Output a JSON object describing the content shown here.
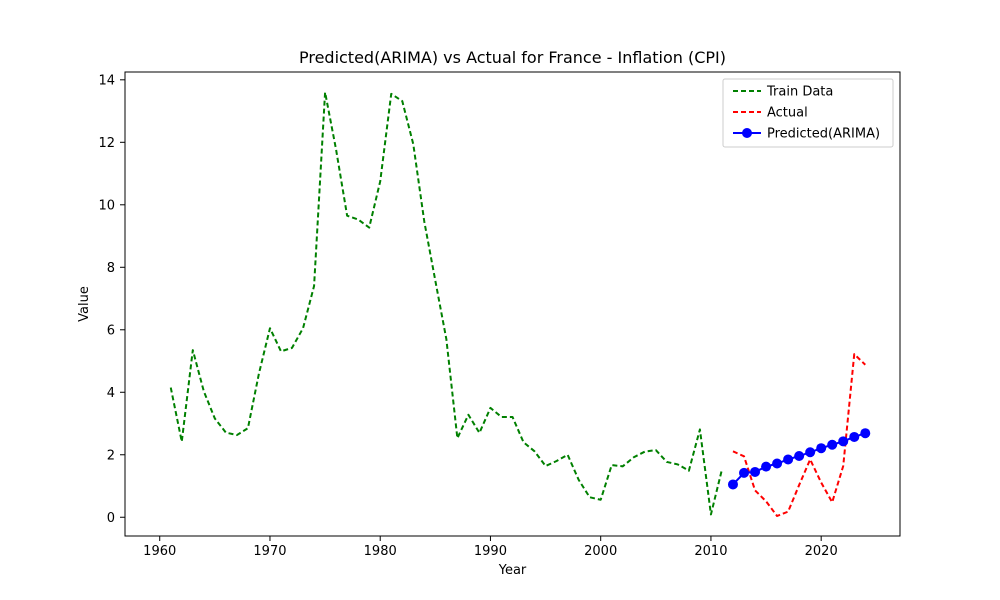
{
  "chart_data": {
    "type": "line",
    "title": "Predicted(ARIMA) vs Actual for France - Inflation (CPI)",
    "xlabel": "Year",
    "ylabel": "Value",
    "xlim": [
      1956.85,
      2027.15
    ],
    "ylim": [
      -0.6,
      14.25
    ],
    "xticks": [
      1960,
      1970,
      1980,
      1990,
      2000,
      2010,
      2020
    ],
    "yticks": [
      0,
      2,
      4,
      6,
      8,
      10,
      12,
      14
    ],
    "grid": false,
    "legend_position": "top-right",
    "series": [
      {
        "name": "Train Data",
        "color": "#008000",
        "style": "dashed",
        "marker": "none",
        "x": [
          1961,
          1962,
          1963,
          1964,
          1965,
          1966,
          1967,
          1968,
          1969,
          1970,
          1971,
          1972,
          1973,
          1974,
          1975,
          1976,
          1977,
          1978,
          1979,
          1980,
          1981,
          1982,
          1983,
          1984,
          1985,
          1986,
          1987,
          1988,
          1989,
          1990,
          1991,
          1992,
          1993,
          1994,
          1995,
          1996,
          1997,
          1998,
          1999,
          2000,
          2001,
          2002,
          2003,
          2004,
          2005,
          2006,
          2007,
          2008,
          2009,
          2010,
          2011
        ],
        "values": [
          4.15,
          2.42,
          5.35,
          4.03,
          3.16,
          2.71,
          2.63,
          2.85,
          4.6,
          6.05,
          5.31,
          5.42,
          6.05,
          7.4,
          13.6,
          11.76,
          9.65,
          9.53,
          9.27,
          10.75,
          13.55,
          13.32,
          11.94,
          9.46,
          7.57,
          5.7,
          2.53,
          3.28,
          2.7,
          3.5,
          3.21,
          3.21,
          2.4,
          2.11,
          1.64,
          1.8,
          2.0,
          1.2,
          0.64,
          0.56,
          1.67,
          1.63,
          1.92,
          2.1,
          2.15,
          1.77,
          1.69,
          1.49,
          2.81,
          0.09,
          1.53
        ]
      },
      {
        "name": "Actual",
        "color": "#ff0000",
        "style": "dashed",
        "marker": "none",
        "x": [
          2012,
          2013,
          2014,
          2015,
          2016,
          2017,
          2018,
          2019,
          2020,
          2021,
          2022,
          2023,
          2024
        ],
        "values": [
          2.11,
          1.95,
          0.86,
          0.51,
          0.04,
          0.18,
          1.03,
          1.85,
          1.11,
          0.48,
          1.64,
          5.22,
          4.88
        ]
      },
      {
        "name": "Predicted(ARIMA)",
        "color": "#0000ff",
        "style": "solid",
        "marker": "circle",
        "x": [
          2012,
          2013,
          2014,
          2015,
          2016,
          2017,
          2018,
          2019,
          2020,
          2021,
          2022,
          2023,
          2024
        ],
        "values": [
          1.05,
          1.42,
          1.45,
          1.62,
          1.72,
          1.85,
          1.96,
          2.08,
          2.21,
          2.32,
          2.43,
          2.57,
          2.69
        ]
      }
    ]
  }
}
